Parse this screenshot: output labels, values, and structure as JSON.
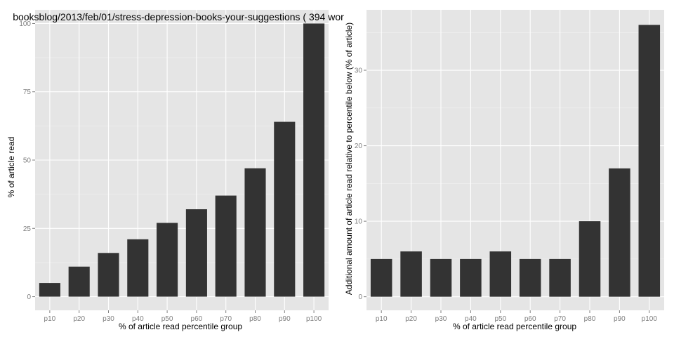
{
  "chart_data": [
    {
      "type": "bar",
      "title": "booksblog/2013/feb/01/stress-depression-books-your-suggestions ( 394 wor",
      "xlabel": "% of article read percentile group",
      "ylabel": "% of article read",
      "categories": [
        "p10",
        "p20",
        "p30",
        "p40",
        "p50",
        "p60",
        "p70",
        "p80",
        "p90",
        "p100"
      ],
      "values": [
        5,
        11,
        16,
        21,
        27,
        32,
        37,
        47,
        64,
        100
      ],
      "ylim": [
        -5,
        105
      ],
      "yticks": [
        0,
        25,
        50,
        75,
        100
      ],
      "grid": true,
      "bar_color": "#333333",
      "panel_color": "#e5e5e5",
      "grid_color": "#ffffff"
    },
    {
      "type": "bar",
      "title": "",
      "xlabel": "% of article read percentile group",
      "ylabel": "Additional amount of article read relative to percentile below (% of article)",
      "categories": [
        "p10",
        "p20",
        "p30",
        "p40",
        "p50",
        "p60",
        "p70",
        "p80",
        "p90",
        "p100"
      ],
      "values": [
        5,
        6,
        5,
        5,
        6,
        5,
        5,
        10,
        17,
        36
      ],
      "ylim": [
        -1.8,
        38
      ],
      "yticks": [
        0,
        10,
        20,
        30
      ],
      "grid": true,
      "bar_color": "#333333",
      "panel_color": "#e5e5e5",
      "grid_color": "#ffffff"
    }
  ]
}
